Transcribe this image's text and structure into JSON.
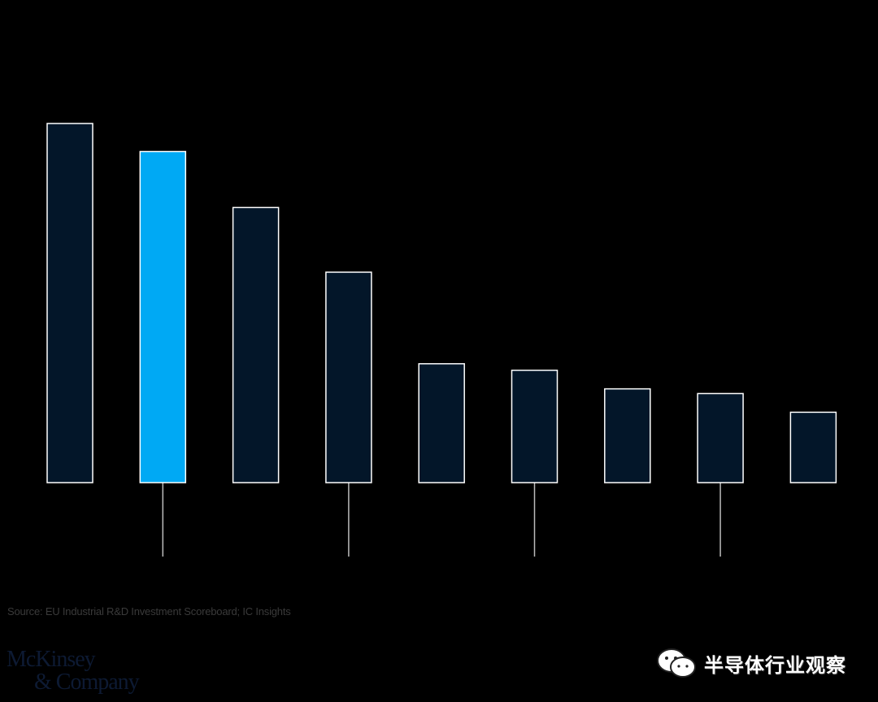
{
  "chart_data": {
    "type": "bar",
    "categories": [
      "",
      "",
      "",
      "",
      "",
      "",
      "",
      "",
      ""
    ],
    "values": [
      100,
      92.2,
      76.6,
      58.6,
      33.1,
      31.3,
      26.1,
      24.8,
      19.6
    ],
    "highlight_index": 1,
    "ylim": [
      0,
      100
    ],
    "grid": false,
    "colors": {
      "bar": "#031629",
      "bar_outline": "#ffffff",
      "highlight": "#00a9f4",
      "tick": "#bbbbbb",
      "background": "#000000"
    },
    "tick_marks_under_bars": [
      1,
      3,
      5,
      7
    ]
  },
  "source": "Source: EU Industrial R&D Investment Scoreboard; IC Insights",
  "logo": {
    "line1": "McKinsey",
    "line2": "& Company"
  },
  "watermark": {
    "text": "半导体行业观察",
    "icon": "wechat-icon"
  }
}
